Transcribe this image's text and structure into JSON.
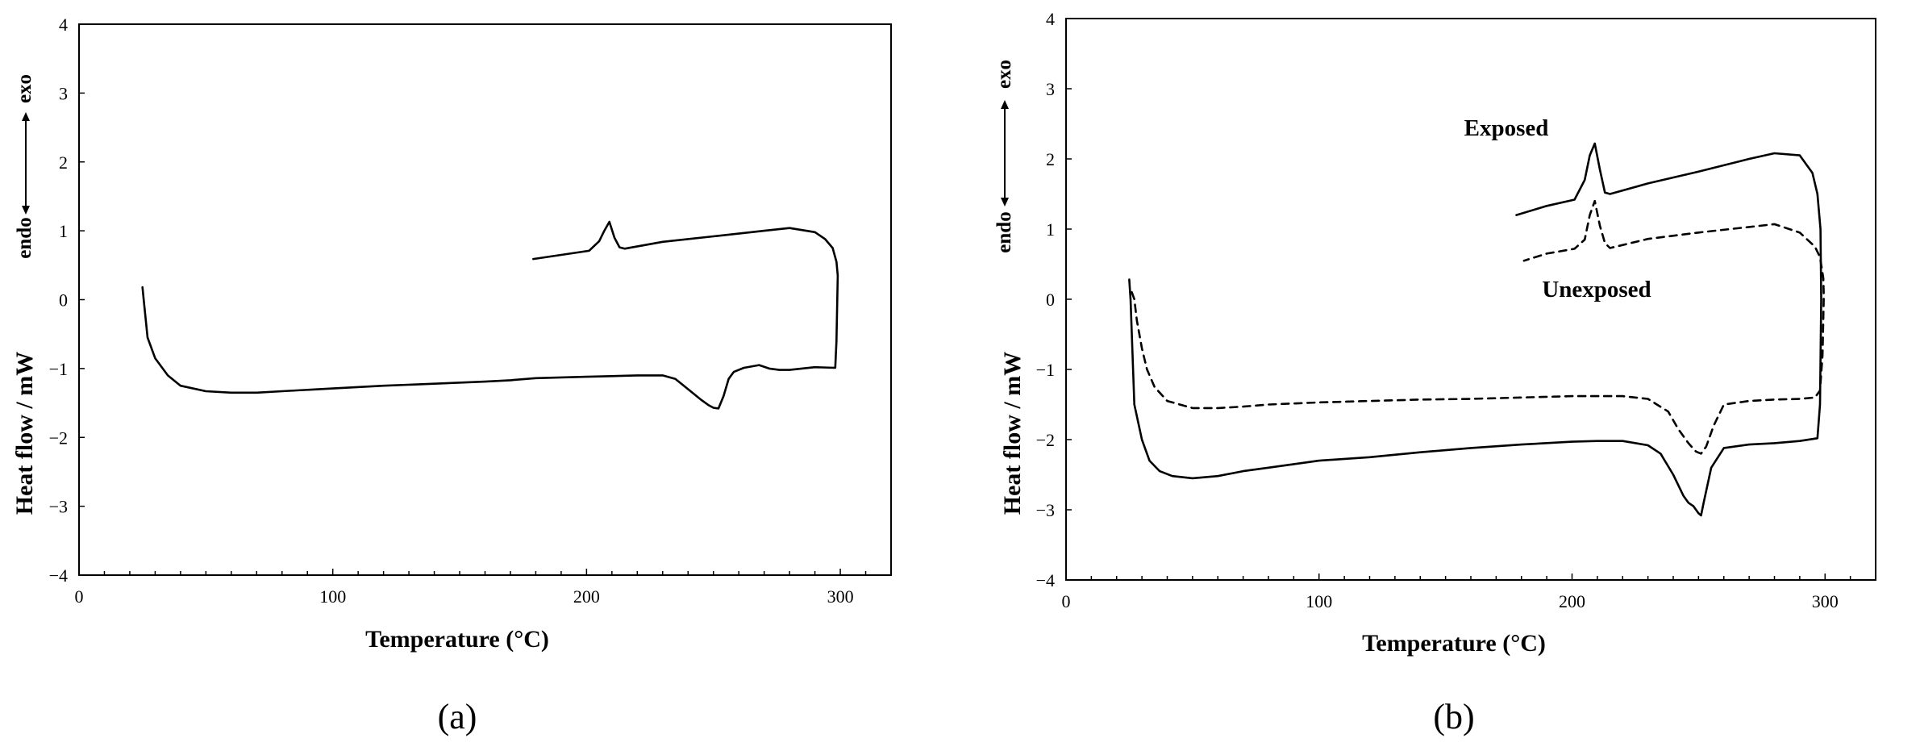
{
  "chart_data": [
    {
      "type": "line",
      "title": "",
      "panel_label": "(a)",
      "xlabel": "Temperature (°C)",
      "ylabel": "Heat flow / mW",
      "direction_label_endo": "endo",
      "direction_label_exo": "exo",
      "xlim": [
        0,
        320
      ],
      "ylim": [
        -4,
        4
      ],
      "xticks": [
        "0",
        "100",
        "200",
        "300"
      ],
      "yticks": [
        "4",
        "3",
        "2",
        "1",
        "0",
        "−1",
        "−2",
        "−3",
        "−4"
      ],
      "grid": false,
      "legend": "none",
      "series": [
        {
          "style": "solid",
          "x": [
            25,
            25.5,
            27,
            30,
            35,
            40,
            50,
            60,
            70,
            80,
            100,
            120,
            140,
            160,
            170,
            180,
            200,
            220,
            230,
            235,
            240,
            245,
            248,
            250,
            252,
            254,
            256,
            258,
            262,
            268,
            272,
            276,
            280,
            290,
            298,
            298.5,
            299,
            298.5,
            297,
            294,
            290,
            280,
            270,
            250,
            230,
            215,
            213,
            211,
            209,
            207,
            205,
            201,
            190,
            179
          ],
          "y": [
            0.18,
            0.0,
            -0.55,
            -0.85,
            -1.1,
            -1.25,
            -1.33,
            -1.35,
            -1.35,
            -1.33,
            -1.29,
            -1.25,
            -1.22,
            -1.19,
            -1.17,
            -1.14,
            -1.12,
            -1.1,
            -1.1,
            -1.15,
            -1.3,
            -1.45,
            -1.53,
            -1.57,
            -1.58,
            -1.4,
            -1.15,
            -1.05,
            -0.99,
            -0.95,
            -1.0,
            -1.02,
            -1.02,
            -0.98,
            -0.99,
            -0.6,
            0.35,
            0.55,
            0.75,
            0.88,
            0.98,
            1.04,
            1.0,
            0.92,
            0.84,
            0.74,
            0.76,
            0.9,
            1.13,
            1.0,
            0.85,
            0.71,
            0.65,
            0.59
          ]
        }
      ]
    },
    {
      "type": "line",
      "title": "",
      "panel_label": "(b)",
      "xlabel": "Temperature (°C)",
      "ylabel": "Heat flow / mW",
      "direction_label_endo": "endo",
      "direction_label_exo": "exo",
      "xlim": [
        0,
        320
      ],
      "ylim": [
        -4,
        4
      ],
      "xticks": [
        "0",
        "100",
        "200",
        "300"
      ],
      "yticks": [
        "4",
        "3",
        "2",
        "1",
        "0",
        "−1",
        "−2",
        "−3",
        "−4"
      ],
      "grid": false,
      "legend": "none",
      "annotations": [
        "Exposed",
        "Unexposed"
      ],
      "series": [
        {
          "name": "Exposed",
          "style": "solid",
          "x": [
            25,
            25.5,
            27,
            30,
            33,
            37,
            42,
            50,
            60,
            70,
            80,
            100,
            120,
            140,
            160,
            180,
            200,
            210,
            220,
            230,
            235,
            240,
            244,
            246,
            248,
            250,
            251,
            252,
            255,
            260,
            270,
            280,
            290,
            297,
            298,
            298.5,
            298.2,
            297,
            295,
            290,
            280,
            270,
            250,
            230,
            215,
            213,
            211,
            209,
            207,
            205,
            201,
            190,
            178
          ],
          "y": [
            0.28,
            0.0,
            -1.5,
            -2.0,
            -2.3,
            -2.45,
            -2.52,
            -2.55,
            -2.52,
            -2.45,
            -2.4,
            -2.3,
            -2.25,
            -2.18,
            -2.12,
            -2.07,
            -2.03,
            -2.02,
            -2.02,
            -2.08,
            -2.2,
            -2.5,
            -2.8,
            -2.9,
            -2.95,
            -3.05,
            -3.08,
            -2.9,
            -2.4,
            -2.12,
            -2.07,
            -2.05,
            -2.02,
            -1.98,
            -1.5,
            0.0,
            1.0,
            1.5,
            1.8,
            2.05,
            2.08,
            2.0,
            1.82,
            1.65,
            1.5,
            1.52,
            1.85,
            2.22,
            2.05,
            1.7,
            1.42,
            1.33,
            1.2
          ]
        },
        {
          "name": "Unexposed",
          "style": "dashed",
          "x": [
            26,
            27,
            28,
            30,
            32,
            35,
            40,
            50,
            60,
            70,
            80,
            100,
            120,
            140,
            160,
            180,
            200,
            220,
            230,
            238,
            242,
            246,
            249,
            251,
            253,
            256,
            260,
            270,
            280,
            290,
            296,
            298,
            299,
            299.5,
            299.3,
            298,
            296,
            293,
            290,
            280,
            270,
            250,
            230,
            215,
            213,
            211,
            209,
            207,
            205,
            201,
            190,
            181
          ],
          "y": [
            0.1,
            0.0,
            -0.3,
            -0.7,
            -1.0,
            -1.25,
            -1.45,
            -1.55,
            -1.55,
            -1.53,
            -1.5,
            -1.47,
            -1.45,
            -1.43,
            -1.42,
            -1.4,
            -1.38,
            -1.38,
            -1.42,
            -1.6,
            -1.85,
            -2.05,
            -2.17,
            -2.2,
            -2.1,
            -1.8,
            -1.5,
            -1.45,
            -1.43,
            -1.42,
            -1.4,
            -1.3,
            -0.8,
            0.05,
            0.3,
            0.6,
            0.75,
            0.85,
            0.95,
            1.07,
            1.03,
            0.95,
            0.86,
            0.73,
            0.8,
            1.05,
            1.4,
            1.2,
            0.85,
            0.72,
            0.65,
            0.55
          ]
        }
      ]
    }
  ]
}
